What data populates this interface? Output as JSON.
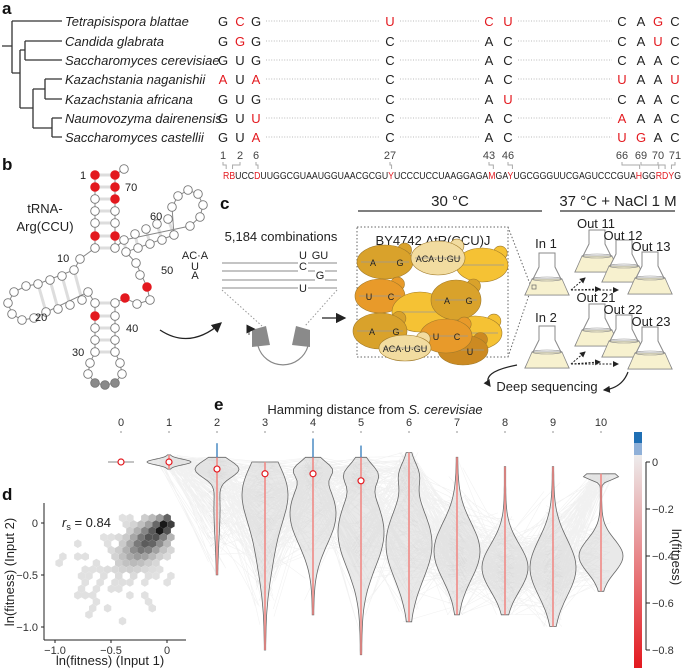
{
  "panel_labels": {
    "a": "a",
    "b": "b",
    "c": "c",
    "d": "d",
    "e": "e"
  },
  "panel_a": {
    "species": [
      {
        "name": "Tetrapisispora blattae",
        "bases": "GCGUCUCAGC",
        "red": "0101110010"
      },
      {
        "name": "Candida glabrata",
        "bases": "GGGCACCAUC",
        "red": "0100000010"
      },
      {
        "name": "Saccharomyces cerevisiae",
        "bases": "GUGCACCAAC",
        "red": "0000000000"
      },
      {
        "name": "Kazachstania naganishii",
        "bases": "AUACACUAAU",
        "red": "1010001001"
      },
      {
        "name": "Kazachstania africana",
        "bases": "GUGCAUCAAC",
        "red": "0000010000"
      },
      {
        "name": "Naumovozyma dairenensis",
        "bases": "GUUCACAAAC",
        "red": "0010001000"
      },
      {
        "name": "Saccharomyces castellii",
        "bases": "GUACACUGAC",
        "red": "0010001100"
      }
    ],
    "positions": [
      "1",
      "2",
      "6",
      "27",
      "43",
      "46",
      "66",
      "69",
      "70",
      "71"
    ],
    "sequence": [
      {
        "t": "RB",
        "red": true
      },
      {
        "t": "UCC",
        "red": false
      },
      {
        "t": "D",
        "red": true
      },
      {
        "t": "UUGGCGUAAUGGUAACGCGU",
        "red": false
      },
      {
        "t": "Y",
        "red": true
      },
      {
        "t": "UCCCUCCUAAGGAGA",
        "red": false
      },
      {
        "t": "M",
        "red": true
      },
      {
        "t": "GA",
        "red": false
      },
      {
        "t": "Y",
        "red": true
      },
      {
        "t": "UGCGGGUUCGAGUCCCGUA",
        "red": false
      },
      {
        "t": "H",
        "red": true
      },
      {
        "t": "GG",
        "red": false
      },
      {
        "t": "RDY",
        "red": true
      },
      {
        "t": "G",
        "red": false
      }
    ]
  },
  "panel_b": {
    "trna_line1": "tRNA-",
    "trna_line2": "Arg(CCU)",
    "numbers": {
      "n1": "1",
      "n10": "10",
      "n20": "20",
      "n30": "30",
      "n40": "40",
      "n50": "50",
      "n60": "60",
      "n70": "70"
    }
  },
  "panel_c": {
    "condition_1": "30 °C",
    "condition_2": "37 °C + NaCl 1 M",
    "combinations": "5,184 combinations",
    "library_rows": [
      [
        "AC·A",
        "U",
        "GU"
      ],
      [
        "U",
        "C",
        ""
      ],
      [
        "A",
        "",
        "G"
      ],
      [
        "",
        "U",
        ""
      ]
    ],
    "strain": "BY4742 ΔtR(CCU)J",
    "cell_labels": [
      "A",
      "G",
      "ACA·U·GU",
      "U",
      "C",
      "A",
      "G",
      "A",
      "G",
      "ACA·U·GU",
      "U",
      "C",
      "U"
    ],
    "inputs": [
      "In 1",
      "In 2"
    ],
    "outputs": [
      "Out 11",
      "Out 12",
      "Out 13",
      "Out 21",
      "Out 22",
      "Out 23"
    ],
    "deep_sequencing": "Deep sequencing"
  },
  "panel_d": {
    "annotation_r": "r",
    "annotation_sub": "s",
    "annotation_value": " = 0.84",
    "x_label": "ln(fitness) (Input 1)",
    "y_label": "ln(fitness) (Input 2)",
    "x_ticks": [
      "−1.0",
      "−0.5",
      "0"
    ],
    "y_ticks": [
      "0",
      "−0.5",
      "−1.0"
    ]
  },
  "panel_e": {
    "title_prefix": "Hamming distance from ",
    "title_species": "S. cerevisiae",
    "x_ticks": [
      "0",
      "1",
      "2",
      "3",
      "4",
      "5",
      "6",
      "7",
      "8",
      "9",
      "10"
    ],
    "colorbar_label": "ln(fitness)",
    "colorbar_ticks": [
      "0",
      "−0.2",
      "−0.4",
      "−0.6",
      "−0.8"
    ]
  },
  "colors": {
    "highlight_red": "#e3191f",
    "positive_blue": "#1f6fb4",
    "cell_gold": "#d9a22b",
    "cell_pale": "#f2dca0",
    "cell_yellow": "#f5c234",
    "cell_orange": "#e89a2a",
    "flask_fill": "#f7f1cf"
  }
}
